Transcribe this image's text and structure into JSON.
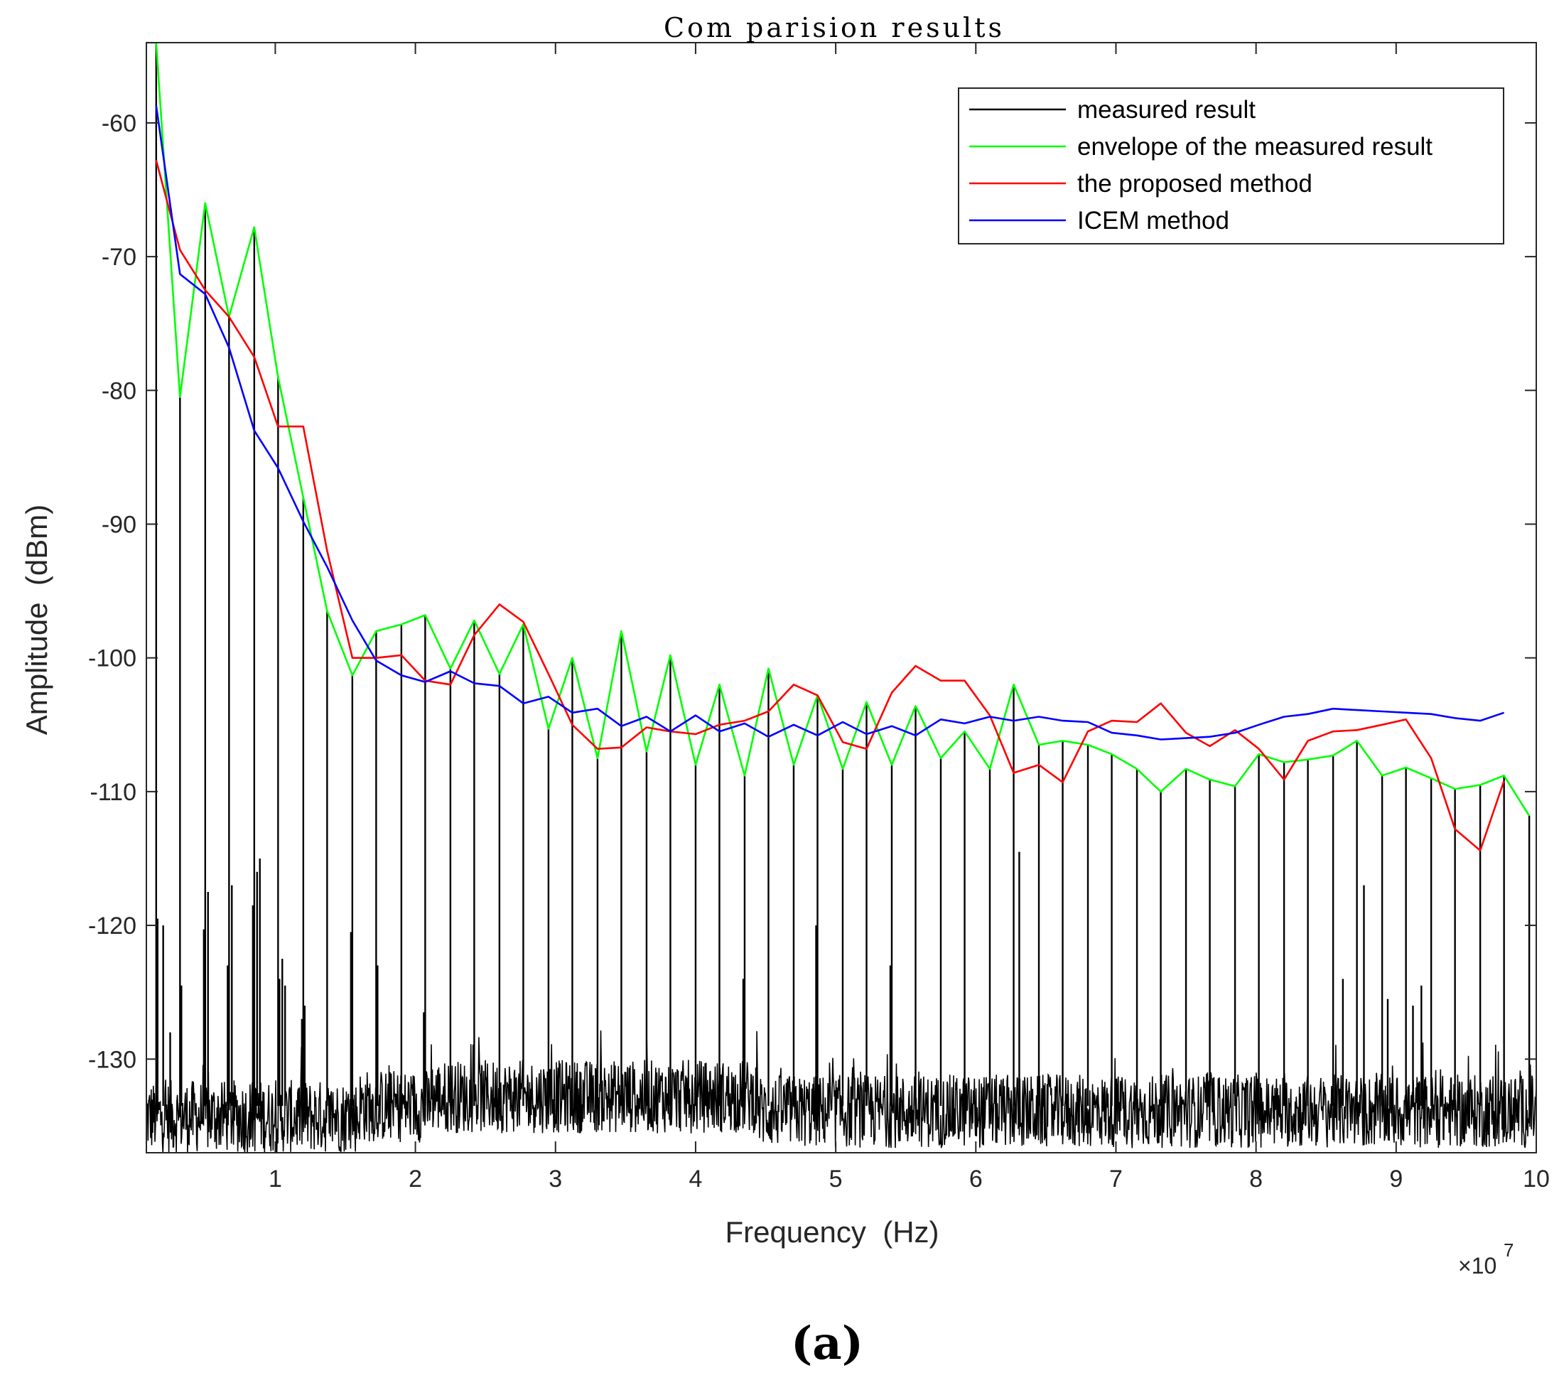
{
  "chart_data": {
    "type": "line",
    "title": "Com parision results",
    "xlabel": "Frequency  (Hz)",
    "ylabel": "Amplitude  (dBm)",
    "x_exponent_label": "×10",
    "x_exponent_power": "7",
    "caption": "(a)",
    "xlim": [
      0.08,
      10
    ],
    "ylim": [
      -137,
      -54
    ],
    "xticks": [
      1,
      2,
      3,
      4,
      5,
      6,
      7,
      8,
      9,
      10
    ],
    "xtick_labels": [
      "1",
      "2",
      "3",
      "4",
      "5",
      "6",
      "7",
      "8",
      "9",
      "10"
    ],
    "yticks": [
      -130,
      -120,
      -110,
      -100,
      -90,
      -80,
      -70,
      -60
    ],
    "ytick_labels": [
      "-130",
      "-120",
      "-110",
      "-100",
      "-90",
      "-80",
      "-70",
      "-60"
    ],
    "x_units_note": "frequency in units of 10^7 Hz",
    "legend_position": "top-right",
    "series": [
      {
        "name": "measured result",
        "color": "#000000",
        "style": "spectrum",
        "noise_floor": -133.5,
        "peak_x": [
          0.15,
          0.32,
          0.5,
          0.67,
          0.85,
          1.02,
          1.2,
          1.37,
          1.55,
          1.72,
          1.9,
          2.07,
          2.25,
          2.42,
          2.6,
          2.77,
          2.95,
          3.12,
          3.3,
          3.47,
          3.65,
          3.82,
          4.0,
          4.17,
          4.35,
          4.52,
          4.7,
          4.87,
          5.05,
          5.22,
          5.4,
          5.57,
          5.75,
          5.92,
          6.1,
          6.27,
          6.45,
          6.62,
          6.8,
          6.97,
          7.15,
          7.32,
          7.5,
          7.67,
          7.85,
          8.02,
          8.2,
          8.37,
          8.55,
          8.72,
          8.9,
          9.07,
          9.25,
          9.42,
          9.6,
          9.77,
          9.95
        ],
        "peak_y": [
          -54,
          -80.5,
          -66,
          -74.5,
          -67.8,
          -79,
          -88,
          -96.5,
          -101.3,
          -98,
          -97.5,
          -96.8,
          -100.8,
          -97.2,
          -101.2,
          -97.5,
          -105.3,
          -100,
          -107.5,
          -98,
          -107,
          -99.8,
          -108,
          -102,
          -108.8,
          -100.8,
          -108,
          -102.8,
          -108.3,
          -103.3,
          -108,
          -103.6,
          -107.5,
          -105.5,
          -108.3,
          -102,
          -106.5,
          -106.2,
          -106.5,
          -107.2,
          -108.3,
          -110,
          -108.3,
          -109.1,
          -109.6,
          -107.2,
          -107.8,
          -107.6,
          -107.3,
          -106.2,
          -108.8,
          -108.2,
          -109,
          -109.8,
          -109.5,
          -108.8,
          -111.8
        ],
        "spur_x": [
          0.16,
          0.2,
          0.25,
          0.33,
          0.49,
          0.52,
          0.66,
          0.69,
          0.84,
          0.87,
          0.89,
          1.03,
          1.05,
          1.07,
          1.19,
          1.21,
          1.54,
          1.73,
          2.06,
          4.34,
          4.86,
          5.39,
          6.31,
          8.62,
          8.77,
          8.94,
          9.12,
          9.18
        ],
        "spur_y": [
          -119.5,
          -120,
          -128,
          -124.5,
          -120.3,
          -117.5,
          -123,
          -117,
          -118.5,
          -116,
          -115,
          -124,
          -122.5,
          -124.5,
          -127,
          -126,
          -120.5,
          -123,
          -126.5,
          -124,
          -120,
          -123,
          -114.5,
          -124,
          -117,
          -125.5,
          -126,
          -124.5
        ]
      },
      {
        "name": "envelope of the measured result",
        "color": "#00ff00",
        "x": [
          0.08,
          0.15,
          0.32,
          0.5,
          0.67,
          0.85,
          1.02,
          1.2,
          1.37,
          1.55,
          1.72,
          1.9,
          2.07,
          2.25,
          2.42,
          2.6,
          2.77,
          2.95,
          3.12,
          3.3,
          3.47,
          3.65,
          3.82,
          4.0,
          4.17,
          4.35,
          4.52,
          4.7,
          4.87,
          5.05,
          5.22,
          5.4,
          5.57,
          5.75,
          5.92,
          6.1,
          6.27,
          6.45,
          6.62,
          6.8,
          6.97,
          7.15,
          7.32,
          7.5,
          7.67,
          7.85,
          8.02,
          8.2,
          8.37,
          8.55,
          8.72,
          8.9,
          9.07,
          9.25,
          9.42,
          9.6,
          9.77,
          9.95
        ],
        "y": [
          -54,
          -54,
          -80.5,
          -66,
          -74.5,
          -67.8,
          -79,
          -88,
          -96.5,
          -101.3,
          -98,
          -97.5,
          -96.8,
          -100.8,
          -97.2,
          -101.2,
          -97.5,
          -105.3,
          -100,
          -107.5,
          -98,
          -107,
          -99.8,
          -108,
          -102,
          -108.8,
          -100.8,
          -108,
          -102.8,
          -108.3,
          -103.3,
          -108,
          -103.6,
          -107.5,
          -105.5,
          -108.3,
          -102,
          -106.5,
          -106.2,
          -106.5,
          -107.2,
          -108.3,
          -110,
          -108.3,
          -109.1,
          -109.6,
          -107.2,
          -107.8,
          -107.6,
          -107.3,
          -106.2,
          -108.8,
          -108.2,
          -109,
          -109.8,
          -109.5,
          -108.8,
          -111.8
        ]
      },
      {
        "name": "the proposed method",
        "color": "#ff0000",
        "x": [
          0.15,
          0.32,
          0.5,
          0.67,
          0.85,
          1.02,
          1.2,
          1.37,
          1.55,
          1.72,
          1.9,
          2.07,
          2.25,
          2.42,
          2.6,
          2.77,
          2.95,
          3.12,
          3.3,
          3.47,
          3.65,
          3.82,
          4.0,
          4.17,
          4.35,
          4.52,
          4.7,
          4.87,
          5.05,
          5.22,
          5.4,
          5.57,
          5.75,
          5.92,
          6.1,
          6.27,
          6.45,
          6.62,
          6.8,
          6.97,
          7.15,
          7.32,
          7.5,
          7.67,
          7.85,
          8.02,
          8.2,
          8.37,
          8.55,
          8.72,
          8.9,
          9.07,
          9.25,
          9.42,
          9.6,
          9.77
        ],
        "y": [
          -62.8,
          -69.5,
          -72.5,
          -74.5,
          -77.5,
          -82.7,
          -82.7,
          -92,
          -100,
          -100,
          -99.8,
          -101.7,
          -102,
          -98.3,
          -96,
          -97.3,
          -101.2,
          -105,
          -106.8,
          -106.7,
          -105.2,
          -105.5,
          -105.7,
          -105,
          -104.7,
          -104,
          -102,
          -102.8,
          -106.3,
          -106.8,
          -102.6,
          -100.6,
          -101.7,
          -101.7,
          -104.3,
          -108.6,
          -108,
          -109.3,
          -105.5,
          -104.7,
          -104.8,
          -103.4,
          -105.6,
          -106.6,
          -105.4,
          -106.8,
          -109.1,
          -106.2,
          -105.5,
          -105.4,
          -105,
          -104.6,
          -107.5,
          -112.8,
          -114.4,
          -109.2
        ]
      },
      {
        "name": "ICEM method",
        "color": "#0000ff",
        "x": [
          0.15,
          0.32,
          0.5,
          0.67,
          0.85,
          1.02,
          1.2,
          1.37,
          1.55,
          1.72,
          1.9,
          2.07,
          2.25,
          2.42,
          2.6,
          2.77,
          2.95,
          3.12,
          3.3,
          3.47,
          3.65,
          3.82,
          4.0,
          4.17,
          4.35,
          4.52,
          4.7,
          4.87,
          5.05,
          5.22,
          5.4,
          5.57,
          5.75,
          5.92,
          6.1,
          6.27,
          6.45,
          6.62,
          6.8,
          6.97,
          7.15,
          7.32,
          7.5,
          7.67,
          7.85,
          8.02,
          8.2,
          8.37,
          8.55,
          8.72,
          8.9,
          9.07,
          9.25,
          9.42,
          9.6,
          9.77
        ],
        "y": [
          -58.7,
          -71.3,
          -72.8,
          -76.8,
          -83,
          -85.8,
          -89.8,
          -93.2,
          -97.2,
          -100.2,
          -101.3,
          -101.8,
          -101,
          -101.9,
          -102.1,
          -103.4,
          -102.9,
          -104.1,
          -103.8,
          -105.1,
          -104.4,
          -105.5,
          -104.3,
          -105.5,
          -104.9,
          -105.9,
          -105,
          -105.8,
          -104.8,
          -105.7,
          -105.1,
          -105.8,
          -104.6,
          -104.9,
          -104.4,
          -104.7,
          -104.4,
          -104.7,
          -104.8,
          -105.6,
          -105.8,
          -106.1,
          -106,
          -105.9,
          -105.6,
          -105,
          -104.4,
          -104.2,
          -103.8,
          -103.9,
          -104,
          -104.1,
          -104.2,
          -104.5,
          -104.7,
          -104.1
        ]
      }
    ]
  }
}
